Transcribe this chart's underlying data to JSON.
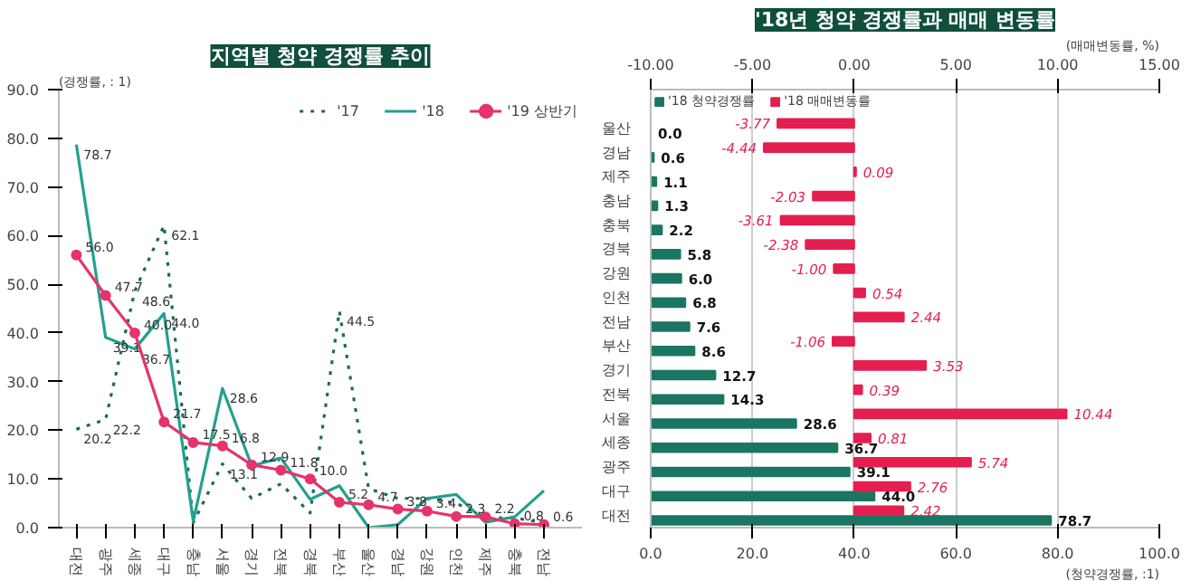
{
  "chart_data": [
    {
      "type": "line",
      "title": "지역별 청약 경쟁률 추이",
      "ylabel": "(경쟁률, : 1)",
      "categories": [
        "대전",
        "광주",
        "세종",
        "대구",
        "충남",
        "서울",
        "경기",
        "전북",
        "경북",
        "부산",
        "울산",
        "경남",
        "강원",
        "인천",
        "제주",
        "충북",
        "전남"
      ],
      "series": [
        {
          "name": "'17",
          "color": "#1e6b55",
          "marker": "none",
          "line_style": "dotted",
          "values": [
            20.2,
            22.2,
            48.6,
            62.1,
            1.0,
            13.1,
            6.0,
            9.0,
            3.0,
            44.5,
            8.0,
            6.0,
            6.0,
            5.0,
            2.0,
            2.0,
            1.0
          ],
          "value_labels": [
            "20.2",
            "22.2",
            "48.6",
            "62.1",
            null,
            "13.1",
            null,
            null,
            null,
            "44.5",
            null,
            null,
            null,
            null,
            null,
            null,
            null
          ]
        },
        {
          "name": "'18",
          "color": "#23a08f",
          "marker": "none",
          "line_style": "solid",
          "values": [
            78.7,
            39.1,
            36.7,
            44.0,
            1.3,
            28.6,
            12.7,
            14.3,
            5.8,
            8.6,
            0.0,
            0.6,
            6.0,
            6.8,
            1.1,
            2.2,
            7.6
          ],
          "value_labels": [
            "78.7",
            "39.1",
            "36.7",
            "44.0",
            null,
            "28.6",
            null,
            null,
            null,
            null,
            null,
            null,
            null,
            null,
            null,
            null,
            null
          ]
        },
        {
          "name": "'19 상반기",
          "color": "#e6336a",
          "marker": "circle",
          "line_style": "solid",
          "values": [
            56.0,
            47.7,
            40.0,
            21.7,
            17.5,
            16.8,
            12.9,
            11.8,
            10.0,
            5.2,
            4.7,
            3.8,
            3.4,
            2.3,
            2.2,
            0.8,
            0.6
          ],
          "value_labels": [
            "56.0",
            "47.7",
            "40.0",
            "21.7",
            "17.5",
            "16.8",
            "12.9",
            "11.8",
            "10.0",
            "5.2",
            "4.7",
            "3.8",
            "3.4",
            "2.3",
            "2.2",
            "0.8",
            "0.6"
          ]
        }
      ],
      "ylim": [
        0,
        90
      ],
      "yticks": [
        {
          "value": 0,
          "label": "0.0"
        },
        {
          "value": 10,
          "label": "10.0"
        },
        {
          "value": 20,
          "label": "20.0"
        },
        {
          "value": 30,
          "label": "30.0"
        },
        {
          "value": 40,
          "label": "40.0"
        },
        {
          "value": 50,
          "label": "50.0"
        },
        {
          "value": 60,
          "label": "60.0"
        },
        {
          "value": 70,
          "label": "70.0"
        },
        {
          "value": 80,
          "label": "80.0"
        },
        {
          "value": 90,
          "label": "90.0"
        }
      ],
      "legend": "top right",
      "grid": false
    },
    {
      "type": "bar",
      "orientation": "horizontal",
      "title": "'18년 청약 경쟁률과 매매 변동률",
      "xlabel": "(청약경쟁률, :1)",
      "x2label": "(매매변동률, %)",
      "categories": [
        "울산",
        "경남",
        "제주",
        "충남",
        "충북",
        "경북",
        "강원",
        "인천",
        "전남",
        "부산",
        "경기",
        "전북",
        "서울",
        "세종",
        "광주",
        "대구",
        "대전"
      ],
      "series": [
        {
          "name": "'18 청약경쟁률",
          "color": "#1a7662",
          "values": [
            0.0,
            0.6,
            1.1,
            1.3,
            2.2,
            5.8,
            6.0,
            6.8,
            7.6,
            8.6,
            12.7,
            14.3,
            28.6,
            36.7,
            39.1,
            44.0,
            78.7
          ],
          "value_labels": [
            "0.0",
            "0.6",
            "1.1",
            "1.3",
            "2.2",
            "5.8",
            "6.0",
            "6.8",
            "7.6",
            "8.6",
            "12.7",
            "14.3",
            "28.6",
            "36.7",
            "39.1",
            "44.0",
            "78.7"
          ]
        },
        {
          "name": "'18 매매변동률",
          "color": "#e51e50",
          "axis": "x2",
          "values": [
            -3.77,
            -4.44,
            0.09,
            -2.03,
            -3.61,
            -2.38,
            -1.0,
            0.54,
            2.44,
            -1.06,
            3.53,
            0.39,
            10.44,
            0.81,
            5.74,
            2.76,
            2.42
          ],
          "value_labels": [
            "-3.77",
            "-4.44",
            "0.09",
            "-2.03",
            "-3.61",
            "-2.38",
            "-1.00",
            "0.54",
            "2.44",
            "-1.06",
            "3.53",
            "0.39",
            "10.44",
            "0.81",
            "5.74",
            "2.76",
            "2.42"
          ]
        }
      ],
      "xlim": [
        0,
        100
      ],
      "xticks": [
        {
          "value": 0,
          "label": "0.0"
        },
        {
          "value": 20,
          "label": "20.0"
        },
        {
          "value": 40,
          "label": "40.0"
        },
        {
          "value": 60,
          "label": "60.0"
        },
        {
          "value": 80,
          "label": "80.0"
        },
        {
          "value": 100,
          "label": "100.0"
        }
      ],
      "x2lim": [
        -10,
        15
      ],
      "x2ticks": [
        {
          "value": -10,
          "label": "-10.00"
        },
        {
          "value": -5,
          "label": "-5.00"
        },
        {
          "value": 0,
          "label": "0.00"
        },
        {
          "value": 5,
          "label": "5.00"
        },
        {
          "value": 10,
          "label": "10.00"
        },
        {
          "value": 15,
          "label": "15.00"
        }
      ],
      "legend": "top left",
      "grid": "x"
    }
  ]
}
